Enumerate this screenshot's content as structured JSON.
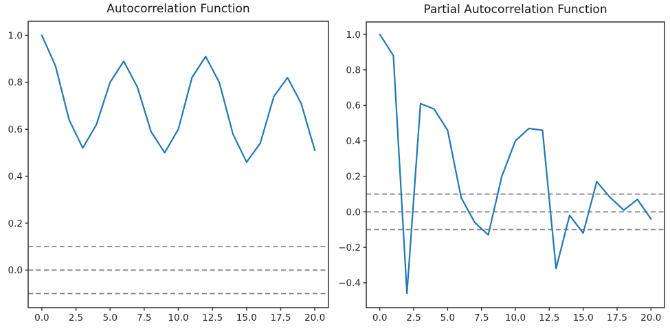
{
  "figure": {
    "background": "#ffffff",
    "accent_line_color": "#1f77b4",
    "dashed_line_color": "#808080",
    "spine_color": "#2e2e2e",
    "tick_text_color": "#1f1f1f"
  },
  "chart_data": [
    {
      "type": "line",
      "title": "Autocorrelation Function",
      "xlabel": "",
      "ylabel": "",
      "x": [
        0,
        1,
        2,
        3,
        4,
        5,
        6,
        7,
        8,
        9,
        10,
        11,
        12,
        13,
        14,
        15,
        16,
        17,
        18,
        19,
        20
      ],
      "series": [
        {
          "name": "autocorrelation",
          "color": "#1f77b4",
          "values": [
            1.0,
            0.87,
            0.64,
            0.52,
            0.62,
            0.8,
            0.89,
            0.78,
            0.59,
            0.5,
            0.6,
            0.82,
            0.91,
            0.8,
            0.58,
            0.46,
            0.54,
            0.74,
            0.82,
            0.71,
            0.51
          ]
        }
      ],
      "reference_lines_y": [
        0.1,
        0.0,
        -0.1
      ],
      "reference_line_style": "dashed",
      "xlim": [
        -1,
        21
      ],
      "ylim": [
        -0.16,
        1.06
      ],
      "xticks": {
        "values": [
          0,
          2.5,
          5,
          7.5,
          10,
          12.5,
          15,
          17.5,
          20
        ],
        "labels": [
          "0.0",
          "2.5",
          "5.0",
          "7.5",
          "10.0",
          "12.5",
          "15.0",
          "17.5",
          "20.0"
        ]
      },
      "yticks": {
        "values": [
          0.0,
          0.2,
          0.4,
          0.6,
          0.8,
          1.0
        ],
        "labels": [
          "0.0",
          "0.2",
          "0.4",
          "0.6",
          "0.8",
          "1.0"
        ]
      },
      "grid": false
    },
    {
      "type": "line",
      "title": "Partial Autocorrelation Function",
      "xlabel": "",
      "ylabel": "",
      "x": [
        0,
        1,
        2,
        3,
        4,
        5,
        6,
        7,
        8,
        9,
        10,
        11,
        12,
        13,
        14,
        15,
        16,
        17,
        18,
        19,
        20
      ],
      "series": [
        {
          "name": "partial_autocorrelation",
          "color": "#1f77b4",
          "values": [
            1.0,
            0.88,
            -0.46,
            0.61,
            0.58,
            0.46,
            0.08,
            -0.06,
            -0.13,
            0.2,
            0.4,
            0.47,
            0.46,
            -0.32,
            -0.02,
            -0.12,
            0.17,
            0.08,
            0.01,
            0.07,
            -0.04
          ]
        }
      ],
      "reference_lines_y": [
        0.1,
        0.0,
        -0.1
      ],
      "reference_line_style": "dashed",
      "xlim": [
        -1,
        21
      ],
      "ylim": [
        -0.54,
        1.07
      ],
      "xticks": {
        "values": [
          0,
          2.5,
          5,
          7.5,
          10,
          12.5,
          15,
          17.5,
          20
        ],
        "labels": [
          "0.0",
          "2.5",
          "5.0",
          "7.5",
          "10.0",
          "12.5",
          "15.0",
          "17.5",
          "20.0"
        ]
      },
      "yticks": {
        "values": [
          -0.4,
          -0.2,
          0.0,
          0.2,
          0.4,
          0.6,
          0.8,
          1.0
        ],
        "labels": [
          "−0.4",
          "−0.2",
          "0.0",
          "0.2",
          "0.4",
          "0.6",
          "0.8",
          "1.0"
        ]
      },
      "grid": false
    }
  ]
}
